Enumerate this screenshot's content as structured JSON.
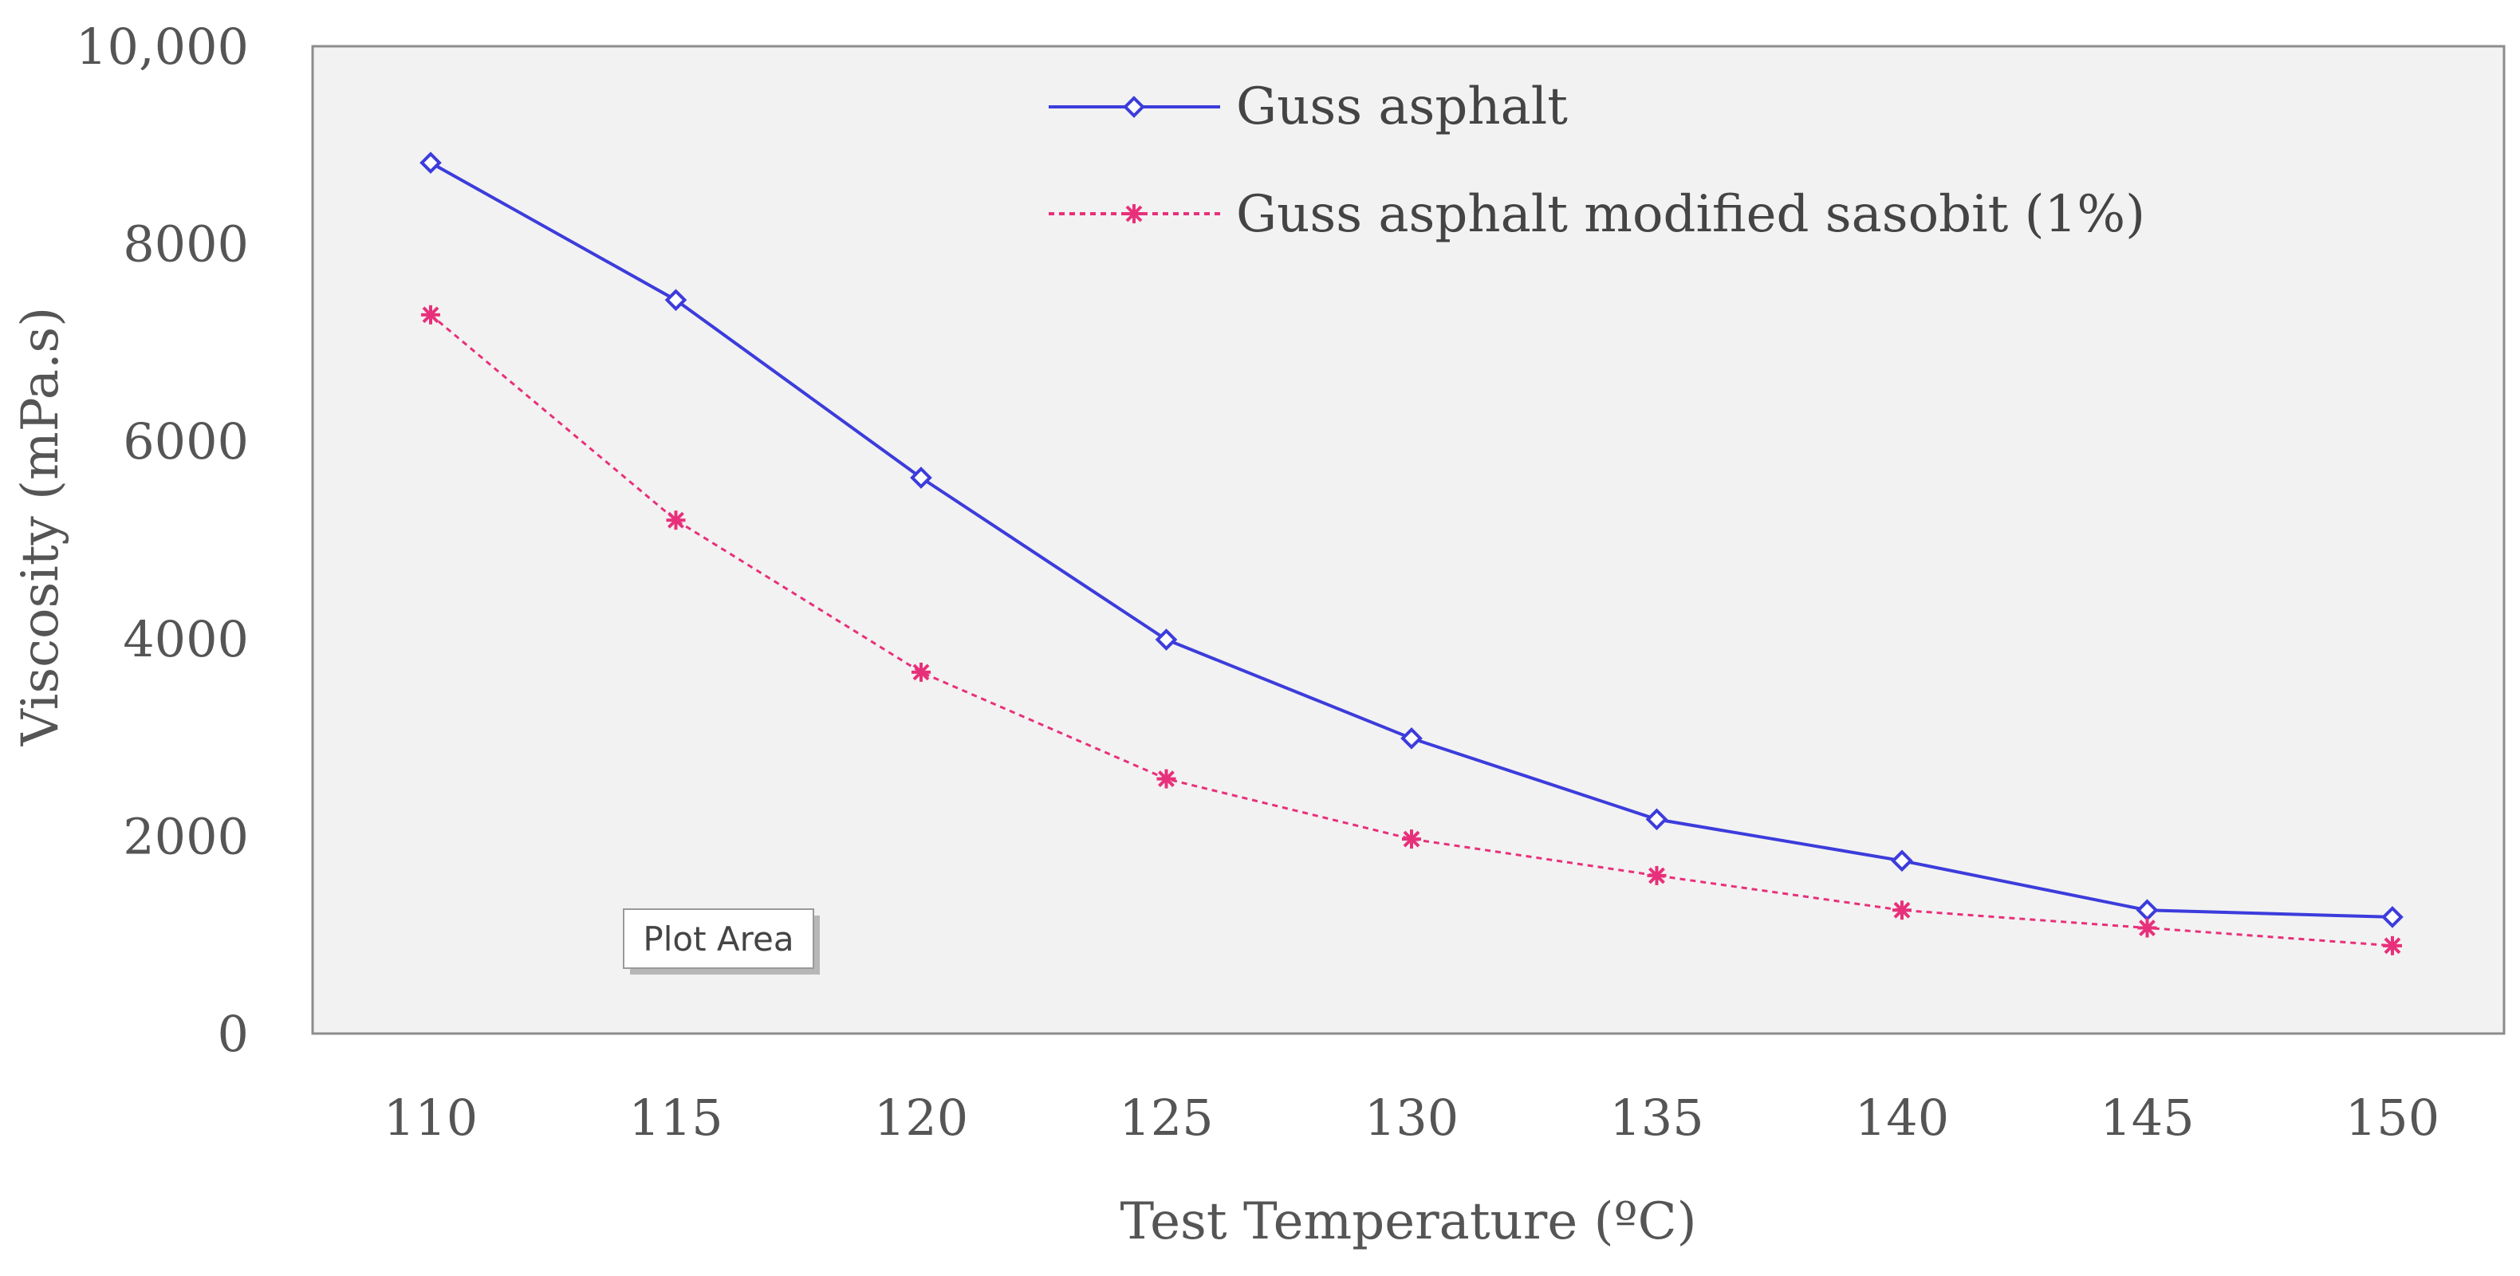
{
  "chart_data": {
    "type": "line",
    "title": "",
    "xlabel": "Test Temperature (ºC)",
    "ylabel": "Viscosity (mPa.s)",
    "categories": [
      "110",
      "115",
      "120",
      "125",
      "130",
      "135",
      "140",
      "145",
      "150"
    ],
    "x": [
      110,
      115,
      120,
      125,
      130,
      135,
      140,
      145,
      150
    ],
    "ylim": [
      0,
      10000
    ],
    "yticks": [
      0,
      2000,
      4000,
      6000,
      8000,
      10000
    ],
    "ytick_labels": [
      "0",
      "2000",
      "4000",
      "6000",
      "8000",
      "10,000"
    ],
    "grid": false,
    "legend_position": "top",
    "series": [
      {
        "name": "Guss asphalt",
        "color": "#3c3cdc",
        "marker": "diamond",
        "line_style": "solid",
        "values": [
          8820,
          7430,
          5630,
          3990,
          2990,
          2170,
          1750,
          1250,
          1180
        ]
      },
      {
        "name": "Guss asphalt modified sasobit (1%)",
        "color": "#e8307a",
        "marker": "star",
        "line_style": "dotted",
        "values": [
          7280,
          5200,
          3660,
          2580,
          1970,
          1600,
          1250,
          1070,
          890
        ]
      }
    ],
    "annotations": [
      "Plot Area"
    ]
  }
}
